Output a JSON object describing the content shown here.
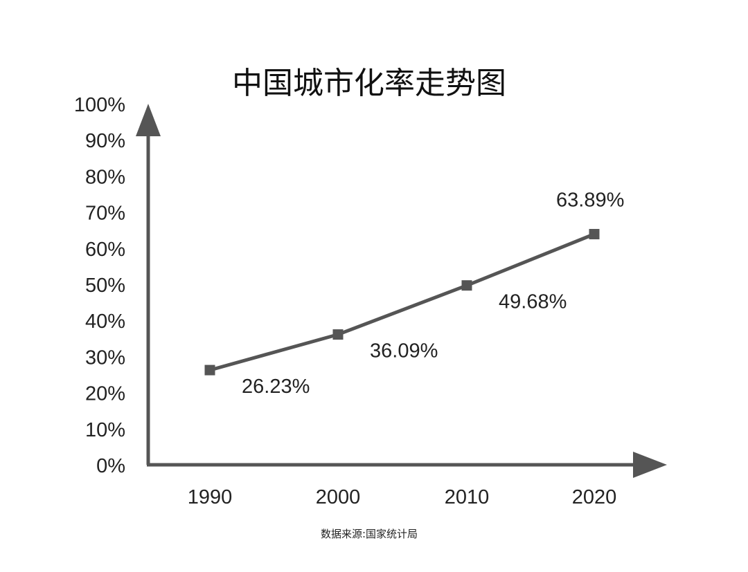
{
  "chart_data": {
    "type": "line",
    "title": "中国城市化率走势图",
    "categories": [
      "1990",
      "2000",
      "2010",
      "2020"
    ],
    "series": [
      {
        "values": [
          26.23,
          36.09,
          49.68,
          63.89
        ]
      }
    ],
    "data_labels": [
      "26.23%",
      "36.09%",
      "49.68%",
      "63.89%"
    ],
    "y_ticks": [
      "0%",
      "10%",
      "20%",
      "30%",
      "40%",
      "50%",
      "60%",
      "70%",
      "80%",
      "90%",
      "100%"
    ],
    "ylim": [
      0,
      100
    ],
    "grid": false,
    "legend": "none",
    "marker": "square",
    "source": "数据来源:国家统计局"
  },
  "colors": {
    "line": "#555555",
    "axis": "#555555",
    "text": "#222222"
  }
}
